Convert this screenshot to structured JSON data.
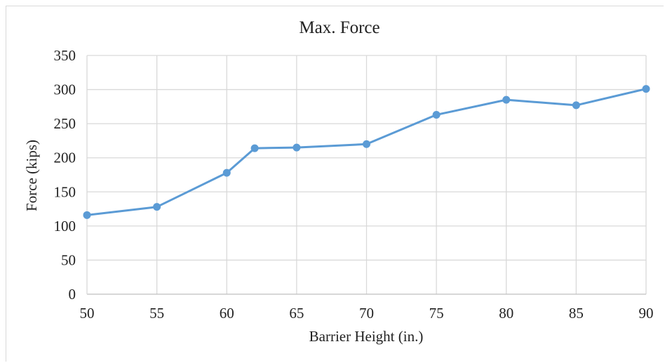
{
  "chart_data": {
    "type": "line",
    "title": "Max. Force",
    "xlabel": "Barrier Height (in.)",
    "ylabel": "Force (kips)",
    "xlim": [
      50,
      90
    ],
    "ylim": [
      0,
      350
    ],
    "x_ticks": [
      50,
      55,
      60,
      65,
      70,
      75,
      80,
      85,
      90
    ],
    "y_ticks": [
      0,
      50,
      100,
      150,
      200,
      250,
      300,
      350
    ],
    "grid": true,
    "legend": "none",
    "series": [
      {
        "color": "#5b9bd5",
        "x": [
          50,
          55,
          60,
          62,
          65,
          70,
          75,
          80,
          85,
          90
        ],
        "y": [
          116,
          128,
          178,
          214,
          215,
          220,
          263,
          285,
          277,
          301
        ]
      }
    ]
  }
}
